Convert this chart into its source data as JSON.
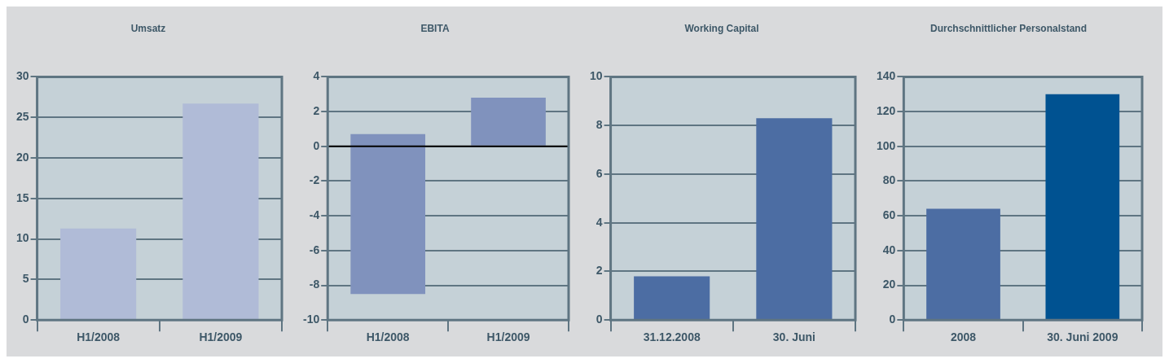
{
  "chart_data": [
    {
      "type": "bar",
      "title": "Umsatz",
      "categories": [
        "H1/2008",
        "H1/2009"
      ],
      "values": [
        11.3,
        26.7
      ],
      "color": "#b0bbd7",
      "ylim": [
        0,
        30
      ],
      "yticks": [
        0,
        5,
        10,
        15,
        20,
        25,
        30
      ],
      "grid": "y",
      "legend": false
    },
    {
      "type": "bar",
      "title": "EBITA",
      "categories": [
        "H1/2008",
        "H1/2009"
      ],
      "values": [
        9.2,
        2.8
      ],
      "base": [
        -8.5,
        0
      ],
      "color": "#8092bd",
      "ylim": [
        -10,
        4
      ],
      "yticks": [
        -10,
        -8,
        -6,
        -4,
        -2,
        0,
        2,
        4
      ],
      "grid": "y",
      "legend": false,
      "ref_lines": [
        {
          "axis": "y",
          "value": 0,
          "color": "#000000"
        }
      ]
    },
    {
      "type": "bar",
      "title": "Working Capital",
      "categories": [
        "31.12.2008",
        "30. Juni"
      ],
      "values": [
        1.8,
        8.3
      ],
      "color": "#4c6da3",
      "ylim": [
        0,
        10
      ],
      "yticks": [
        0,
        2,
        4,
        6,
        8,
        10
      ],
      "grid": "y",
      "legend": false
    },
    {
      "type": "bar",
      "title": "Durchschnittlicher Personalstand",
      "categories": [
        "2008",
        "30. Juni 2009"
      ],
      "values": [
        64,
        130
      ],
      "colors": [
        "#4c6da3",
        "#005291"
      ],
      "ylim": [
        0,
        140
      ],
      "yticks": [
        0,
        20,
        40,
        60,
        80,
        100,
        120,
        140
      ],
      "grid": "y",
      "legend": false
    }
  ]
}
